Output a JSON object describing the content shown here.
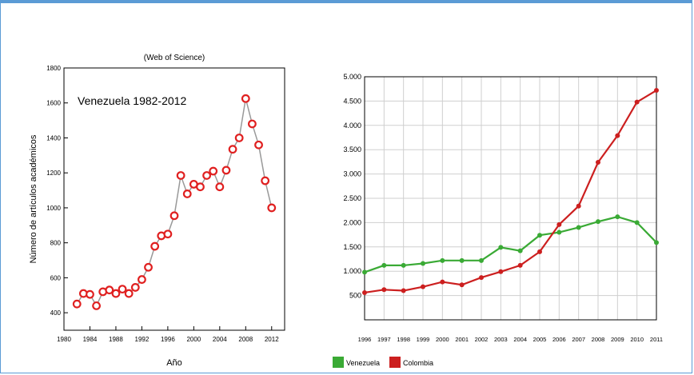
{
  "chart_data": [
    {
      "type": "scatter",
      "title": "(Web of Science)",
      "annotation": "Venezuela 1982-2012",
      "xlabel": "Año",
      "ylabel": "Número de artículos académicos",
      "xlim": [
        1980,
        2014
      ],
      "ylim": [
        300,
        1800
      ],
      "xticks": [
        "1980",
        "1984",
        "1988",
        "1992",
        "1996",
        "2000",
        "2004",
        "2008",
        "2012"
      ],
      "yticks": [
        "400",
        "600",
        "800",
        "1000",
        "1200",
        "1400",
        "1600",
        "1800"
      ],
      "marker_color": "#e02020",
      "line_color": "#999999",
      "x": [
        1982,
        1983,
        1984,
        1985,
        1986,
        1987,
        1988,
        1989,
        1990,
        1991,
        1992,
        1993,
        1994,
        1995,
        1996,
        1997,
        1998,
        1999,
        2000,
        2001,
        2002,
        2003,
        2004,
        2005,
        2006,
        2007,
        2008,
        2009,
        2010,
        2011,
        2012
      ],
      "y": [
        450,
        510,
        505,
        440,
        520,
        530,
        510,
        535,
        510,
        545,
        590,
        660,
        780,
        840,
        850,
        955,
        1185,
        1080,
        1135,
        1120,
        1185,
        1210,
        1120,
        1215,
        1335,
        1400,
        1625,
        1480,
        1360,
        1155,
        1000
      ]
    },
    {
      "type": "line",
      "categories": [
        "1996",
        "1997",
        "1998",
        "1999",
        "2000",
        "2001",
        "2002",
        "2003",
        "2004",
        "2005",
        "2006",
        "2007",
        "2008",
        "2009",
        "2010",
        "2011"
      ],
      "yticks": [
        "500",
        "1.000",
        "1.500",
        "2.000",
        "2.500",
        "3.000",
        "3.500",
        "4.000",
        "4.500",
        "5.000"
      ],
      "ylim": [
        0,
        5000
      ],
      "grid": true,
      "legend_position": "bottom-left",
      "series": [
        {
          "name": "Venezuela",
          "color": "#3aaa35",
          "values": [
            980,
            1120,
            1120,
            1160,
            1220,
            1220,
            1220,
            1490,
            1420,
            1740,
            1800,
            1900,
            2020,
            2120,
            2000,
            1590
          ]
        },
        {
          "name": "Colombia",
          "color": "#cc1f1f",
          "values": [
            560,
            620,
            600,
            680,
            780,
            720,
            870,
            990,
            1120,
            1400,
            1960,
            2340,
            3240,
            3790,
            4480,
            4720
          ]
        }
      ]
    }
  ]
}
